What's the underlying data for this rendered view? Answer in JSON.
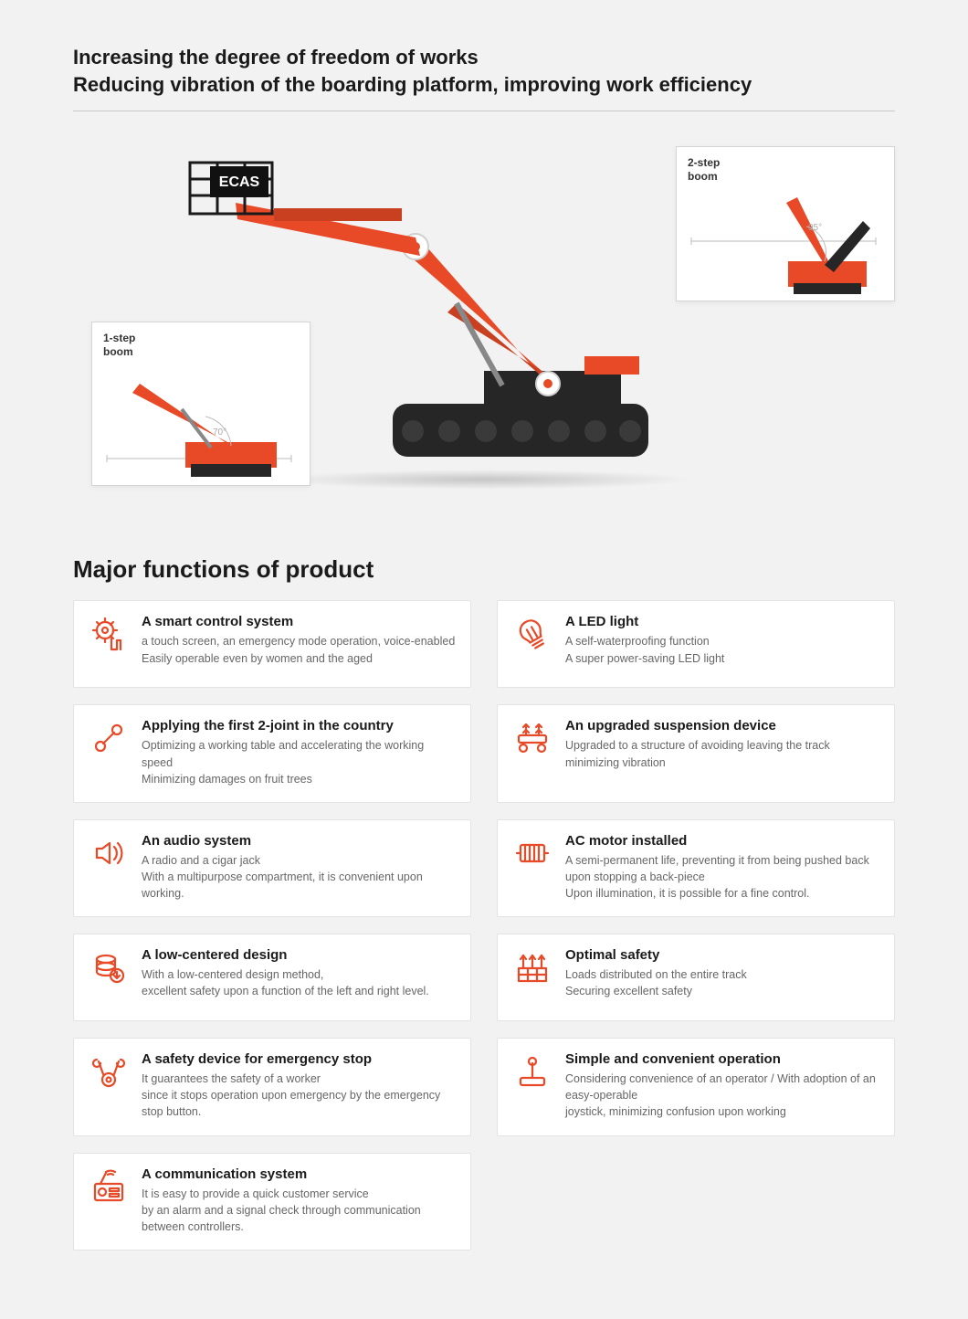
{
  "headline": {
    "line1": "Increasing the degree of freedom of works",
    "line2": "Reducing vibration of the boarding platform, improving work efficiency"
  },
  "hero": {
    "brand": "ECAS",
    "inset1": {
      "label_line1": "1-step",
      "label_line2": "boom",
      "angle": "70°"
    },
    "inset2": {
      "label_line1": "2-step",
      "label_line2": "boom",
      "angle": "95°"
    },
    "primary_color": "#e84a27",
    "dark_color": "#262626",
    "joint_outer": "#ffffff",
    "joint_border": "#d9d9d9"
  },
  "section_title": "Major functions of product",
  "features": [
    {
      "icon": "gear-touch-icon",
      "title": "A smart control system",
      "desc": "a touch screen, an emergency mode operation, voice-enabled\nEasily operable even by women and the aged"
    },
    {
      "icon": "bulb-icon",
      "title": "A LED light",
      "desc": "A self-waterproofing function\nA super power-saving LED light"
    },
    {
      "icon": "joint-icon",
      "title": "Applying the first 2-joint in the country",
      "desc": "Optimizing a working table and accelerating the working speed\nMinimizing damages on fruit trees"
    },
    {
      "icon": "suspension-icon",
      "title": "An upgraded suspension device",
      "desc": "Upgraded to a structure of avoiding leaving the track\nminimizing vibration"
    },
    {
      "icon": "speaker-icon",
      "title": "An audio system",
      "desc": "A radio and a cigar jack\nWith a multipurpose compartment, it is convenient upon working."
    },
    {
      "icon": "motor-icon",
      "title": "AC motor installed",
      "desc": "A semi-permanent life, preventing it from being pushed back upon stopping a back-piece\nUpon illumination, it is possible for a fine control."
    },
    {
      "icon": "lowcenter-icon",
      "title": "A low-centered design",
      "desc": "With a low-centered design method,\nexcellent safety upon a function of the left and right level."
    },
    {
      "icon": "safety-icon",
      "title": "Optimal safety",
      "desc": "Loads distributed on the entire track\nSecuring excellent safety"
    },
    {
      "icon": "tool-icon",
      "title": "A safety device for emergency stop",
      "desc": "It guarantees the safety of a worker\nsince it stops operation upon emergency by the emergency stop button."
    },
    {
      "icon": "joystick-icon",
      "title": "Simple and convenient operation",
      "desc": "Considering convenience of an operator / With adoption of an easy-operable\njoystick, minimizing confusion upon working"
    },
    {
      "icon": "radio-icon",
      "title": "A communication system",
      "desc": "It is easy to provide a quick customer service\nby an alarm and a signal check through communication between controllers."
    }
  ],
  "colors": {
    "accent": "#e84a27",
    "card_border": "#e3e3e3",
    "text_muted": "#666666",
    "background": "#f2f2f2"
  }
}
